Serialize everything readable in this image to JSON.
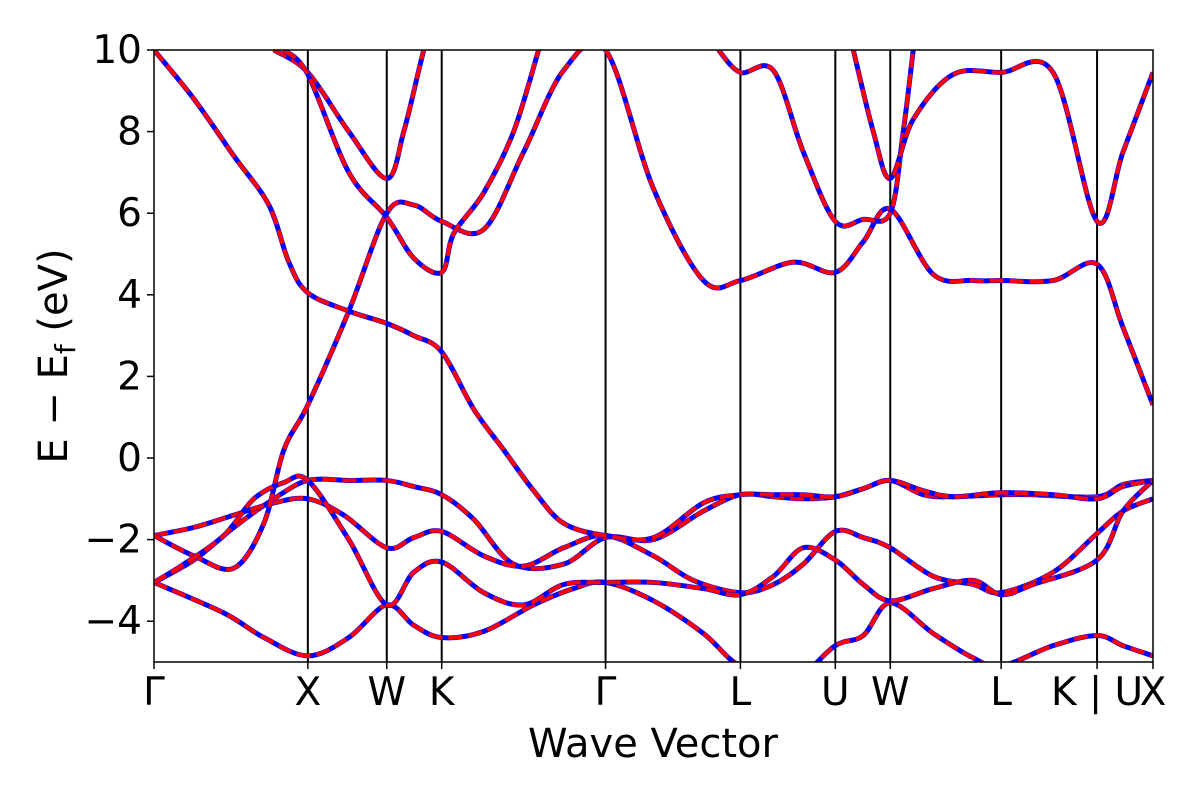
{
  "chart_data": {
    "type": "line",
    "title": "",
    "xlabel": "Wave Vector",
    "ylabel": {
      "main": "E − E",
      "sub": "f",
      "unit": "(eV)"
    },
    "ylim": [
      -5,
      10
    ],
    "yticks": [
      -4,
      -2,
      0,
      2,
      4,
      6,
      8,
      10
    ],
    "ytick_labels": [
      "−4",
      "−2",
      "0",
      "2",
      "4",
      "6",
      "8",
      "10"
    ],
    "xlim": [
      0,
      1
    ],
    "kpoints": [
      {
        "label": "Γ",
        "x": 0.0
      },
      {
        "label": "X",
        "x": 0.154
      },
      {
        "label": "W",
        "x": 0.233
      },
      {
        "label": "K",
        "x": 0.288
      },
      {
        "label": "Γ",
        "x": 0.452
      },
      {
        "label": "L",
        "x": 0.587
      },
      {
        "label": "U",
        "x": 0.682
      },
      {
        "label": "W",
        "x": 0.737
      },
      {
        "label": "L",
        "x": 0.848
      },
      {
        "label": "K | U",
        "x": 0.944
      },
      {
        "label": "X",
        "x": 1.0
      }
    ],
    "colors": {
      "overlay_dashed": "#0000ff",
      "bands": "#ff0000",
      "kpoint_lines": "#000000",
      "axes": "#000000"
    },
    "series_style": "red solid bands overlaid on blue dashed bands (identical values)",
    "bands": [
      {
        "x": [
          0,
          0.07,
          0.11,
          0.154,
          0.195,
          0.233,
          0.26,
          0.288,
          0.33,
          0.38,
          0.42,
          0.452,
          0.5,
          0.55,
          0.587,
          0.64,
          0.682,
          0.71,
          0.737,
          0.78,
          0.82,
          0.848,
          0.9,
          0.944,
          0.97,
          1.0
        ],
        "y": [
          -3.05,
          -3.8,
          -4.4,
          -4.85,
          -4.4,
          -3.6,
          -4.1,
          -4.4,
          -4.25,
          -3.6,
          -3.2,
          -3.05,
          -3.5,
          -4.3,
          -5.1,
          -5.4,
          -4.6,
          -4.35,
          -3.55,
          -4.3,
          -4.9,
          -5.1,
          -4.6,
          -4.35,
          -4.6,
          -4.85
        ]
      },
      {
        "x": [
          0,
          0.04,
          0.08,
          0.12,
          0.154,
          0.195,
          0.233,
          0.26,
          0.288,
          0.32,
          0.36,
          0.41,
          0.452,
          0.5,
          0.55,
          0.587,
          0.62,
          0.65,
          0.682,
          0.71,
          0.737,
          0.77,
          0.8,
          0.848,
          0.88,
          0.944,
          0.97,
          1.0
        ],
        "y": [
          -3.05,
          -2.5,
          -1.7,
          -1.0,
          -0.55,
          -0.55,
          -0.55,
          -0.7,
          -0.9,
          -1.5,
          -2.6,
          -2.6,
          -1.95,
          -2.0,
          -1.3,
          -0.9,
          -0.95,
          -1.0,
          -0.95,
          -0.75,
          -0.55,
          -0.9,
          -0.95,
          -0.9,
          -0.9,
          -0.95,
          -0.65,
          -0.55
        ]
      },
      {
        "x": [
          0,
          0.04,
          0.08,
          0.12,
          0.154,
          0.19,
          0.233,
          0.26,
          0.288,
          0.33,
          0.37,
          0.41,
          0.452,
          0.5,
          0.54,
          0.587,
          0.62,
          0.65,
          0.682,
          0.71,
          0.737,
          0.78,
          0.82,
          0.848,
          0.9,
          0.944,
          0.97,
          1.0
        ],
        "y": [
          -1.9,
          -1.7,
          -1.4,
          -1.1,
          -1.0,
          -1.4,
          -2.2,
          -1.95,
          -1.8,
          -2.4,
          -2.65,
          -2.2,
          -1.9,
          -2.4,
          -3.0,
          -3.3,
          -3.1,
          -2.6,
          -1.8,
          -1.95,
          -2.2,
          -2.9,
          -3.1,
          -3.3,
          -2.8,
          -1.85,
          -1.3,
          -1.0
        ]
      },
      {
        "x": [
          0,
          0.04,
          0.08,
          0.11,
          0.13,
          0.154,
          0.195,
          0.233,
          0.26,
          0.288,
          0.33,
          0.37,
          0.41,
          0.452,
          0.5,
          0.55,
          0.587,
          0.64,
          0.682,
          0.71,
          0.737,
          0.78,
          0.82,
          0.848,
          0.9,
          0.944,
          0.97,
          1.0
        ],
        "y": [
          -1.9,
          -2.4,
          -2.7,
          -1.6,
          0.2,
          1.3,
          3.6,
          6.0,
          6.2,
          5.8,
          5.6,
          7.5,
          9.5,
          10.0,
          6.6,
          4.35,
          4.35,
          4.8,
          4.55,
          5.3,
          6.1,
          4.5,
          4.35,
          4.35,
          4.35,
          4.75,
          3.2,
          1.3
        ]
      },
      {
        "x": [
          0,
          0.03,
          0.07,
          0.1,
          0.13,
          0.154,
          0.195,
          0.233,
          0.26,
          0.288,
          0.33,
          0.37,
          0.41,
          0.452,
          0.5,
          0.55,
          0.587,
          0.62,
          0.65,
          0.682,
          0.71,
          0.737,
          0.78,
          0.82,
          0.848,
          0.88,
          0.944,
          0.97,
          1.0
        ],
        "y": [
          -3.05,
          -2.6,
          -1.9,
          -1.0,
          -0.6,
          -0.55,
          -2.0,
          -3.6,
          -2.8,
          -2.55,
          -3.3,
          -3.6,
          -3.1,
          -3.05,
          -3.05,
          -3.2,
          -3.35,
          -2.9,
          -2.2,
          -2.5,
          -3.1,
          -3.5,
          -3.2,
          -3.0,
          -3.35,
          -3.1,
          -2.5,
          -1.3,
          -0.55
        ]
      },
      {
        "x": [
          0,
          0.04,
          0.08,
          0.115,
          0.135,
          0.154,
          0.195,
          0.233,
          0.26,
          0.288,
          0.32,
          0.35,
          0.38,
          0.41,
          0.452,
          0.5,
          0.55,
          0.587,
          0.62,
          0.65,
          0.682,
          0.71,
          0.737,
          0.77,
          0.8,
          0.848,
          0.9,
          0.944,
          0.97,
          1.0
        ],
        "y": [
          10.0,
          8.8,
          7.4,
          6.2,
          4.8,
          4.05,
          3.6,
          3.3,
          3.0,
          2.6,
          1.2,
          0.2,
          -0.8,
          -1.6,
          -1.9,
          -1.95,
          -1.1,
          -0.9,
          -0.9,
          -0.9,
          -0.95,
          -0.75,
          -0.55,
          -0.8,
          -0.95,
          -0.85,
          -0.9,
          -1.0,
          -0.7,
          -0.55
        ]
      },
      {
        "x": [
          0.12,
          0.154,
          0.195,
          0.233,
          0.25,
          0.265,
          0.27
        ],
        "y": [
          10.0,
          9.45,
          8.0,
          6.85,
          8.0,
          9.5,
          10.0
        ]
      },
      {
        "x": [
          0.13,
          0.154,
          0.195,
          0.233,
          0.26,
          0.288,
          0.3,
          0.33,
          0.36,
          0.385
        ],
        "y": [
          10.0,
          9.4,
          7.0,
          5.9,
          4.9,
          4.55,
          5.5,
          6.5,
          8.0,
          10.0
        ]
      },
      {
        "x": [
          0.565,
          0.587,
          0.62,
          0.65,
          0.682,
          0.71,
          0.737,
          0.75,
          0.76
        ],
        "y": [
          10.0,
          9.45,
          9.5,
          7.5,
          5.8,
          5.85,
          6.0,
          8.0,
          10.0
        ]
      },
      {
        "x": [
          0.7,
          0.72,
          0.737,
          0.76,
          0.8,
          0.848,
          0.9,
          0.944,
          0.97,
          1.0
        ],
        "y": [
          10.0,
          8.0,
          6.85,
          8.3,
          9.4,
          9.45,
          9.45,
          5.8,
          7.5,
          9.45
        ]
      }
    ]
  }
}
